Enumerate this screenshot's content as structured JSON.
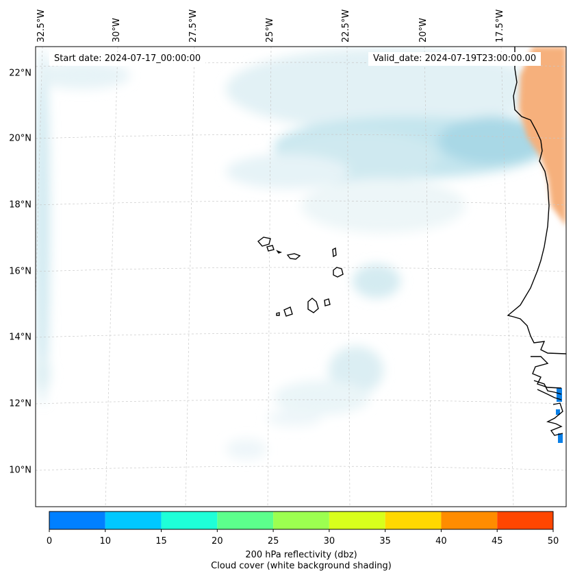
{
  "map": {
    "lon_labels": [
      "32.5°W",
      "30°W",
      "27.5°W",
      "25°W",
      "22.5°W",
      "20°W",
      "17.5°W"
    ],
    "lat_labels": [
      "22°N",
      "20°N",
      "18°N",
      "16°N",
      "14°N",
      "12°N",
      "10°N"
    ],
    "start_date": "Start date: 2024-07-17_00:00:00",
    "valid_date": "Valid_date: 2024-07-19T23:00:00.00"
  },
  "colorbar": {
    "ticks": [
      "0",
      "10",
      "15",
      "20",
      "25",
      "30",
      "35",
      "40",
      "45",
      "50"
    ],
    "colors": [
      "#0080ff",
      "#00c8ff",
      "#1effd8",
      "#5cff8c",
      "#9cff50",
      "#d8ff1c",
      "#ffd800",
      "#ff8c00",
      "#ff4600"
    ],
    "title": "200 hPa reflectivity (dbz)",
    "subtitle": "Cloud cover (white background shading)"
  }
}
